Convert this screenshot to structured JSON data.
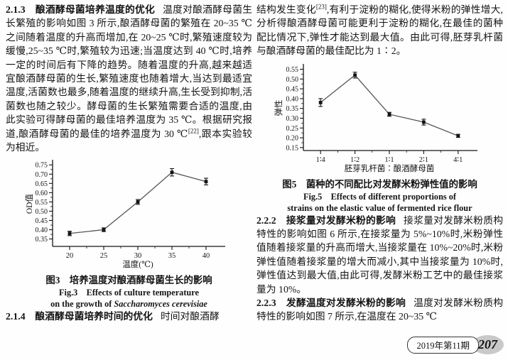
{
  "left_column": {
    "section_213": {
      "heading": "2.1.3　酿酒酵母菌培养温度的优化",
      "body_before_ref": "温度对酿酒酵母菌生长繁殖的影响如图 3 所示,酿酒酵母菌的繁殖在 20~35 ℃之间随着温度的升高而增加,在 20~25 ℃时,繁殖速度较为缓慢,25~35 ℃时,繁殖较为迅速;当温度达到 40 ℃时,培养一定的时间后有下降的趋势。随着温度的升高,越来越适宜酿酒酵母菌的生长,繁殖速度也随着增大,当达到最适宜温度,活菌数也最多,随着温度的继续升高,生长受到抑制,活菌数也随之较少。酵母菌的生长繁殖需要合适的温度,由此实验可得酵母菌的最佳培养温度为 35 ℃。根据研究报道,酿酒酵母菌的最佳的培养温度为 30 ℃",
      "citation": "[22]",
      "body_after_ref": ",跟本实验较为相近。"
    },
    "figure3": {
      "caption_cn": "图3　培养温度对酿酒酵母菌生长的影响",
      "caption_en_line1": "Fig.3　Effects of culture temperature",
      "caption_en_line2_prefix": "on the growth of ",
      "caption_en_line2_species": "Saccharomyces cerevisiae"
    },
    "section_214": {
      "heading": "2.1.4　酿酒酵母菌培养时间的优化",
      "body": "时间对酿酒酵"
    }
  },
  "right_column": {
    "continuation": {
      "body_before_ref": "结构发生变化",
      "citation": "[23]",
      "body_after_ref": ",有利于淀粉的糊化,使得米粉的弹性增大,分析得酿酒酵母菌可能更利于淀粉的糊化,在最佳的菌种配比情况下,弹性才能达到最大值。由此可得,胚芽乳杆菌与酿酒酵母菌的最佳配比为 1∶2。"
    },
    "figure5": {
      "caption_cn": "图5　菌种的不同配比对发酵米粉弹性值的影响",
      "caption_en_line1": "Fig.5　Effects of different proportions of",
      "caption_en_line2": "strains on the elastic value of fermented rice flour"
    },
    "section_222": {
      "heading": "2.2.2　接浆量对发酵米粉的影响",
      "body": "接浆量对发酵米粉质构特性的影响如图 6 所示,在接浆量为 5%~10%时,米粉弹性值随着接浆量的升高而增大,当接浆量在 10%~20%时,米粉弹性值随着接浆量的增大而减小,其中当接浆量为 10%时,弹性值达到最大值,由此可得,发酵米粉工艺中的最佳接浆量为 10%。"
    },
    "section_223": {
      "heading": "2.2.3　发酵温度对发酵米粉的影响",
      "body": "温度对发酵米粉质构特性的影响如图 7 所示,在温度在 20~35 ℃"
    }
  },
  "footer": {
    "issue": "2019年第11期",
    "page_number": "207"
  },
  "chart_data": [
    {
      "id": "figure3",
      "type": "line",
      "categories": [
        "20",
        "25",
        "30",
        "35",
        "40"
      ],
      "values": [
        0.38,
        0.4,
        0.55,
        0.71,
        0.66
      ],
      "error": [
        0.012,
        0.01,
        0.013,
        0.02,
        0.018
      ],
      "title": "",
      "xlabel": "温度(℃)",
      "ylabel": "OD值",
      "ylim": [
        0.31,
        0.77
      ],
      "yticks": [
        0.35,
        0.4,
        0.45,
        0.5,
        0.55,
        0.6,
        0.65,
        0.7,
        0.75
      ],
      "grid": false,
      "legend_position": "none",
      "marker": "filled-square",
      "line_color": "#555555"
    },
    {
      "id": "figure5",
      "type": "line",
      "categories": [
        "1∶4",
        "1∶2",
        "1∶1",
        "2∶1",
        "4∶1"
      ],
      "values": [
        0.38,
        0.52,
        0.32,
        0.28,
        0.21
      ],
      "error": [
        0.02,
        0.015,
        0.01,
        0.015,
        0.008
      ],
      "title": "",
      "xlabel": "胚芽乳杆菌∶酿酒酵母菌",
      "ylabel": "弹性",
      "ylim": [
        0.135,
        0.57
      ],
      "yticks": [
        0.15,
        0.2,
        0.25,
        0.3,
        0.35,
        0.4,
        0.45,
        0.5,
        0.55
      ],
      "grid": false,
      "legend_position": "none",
      "marker": "filled-square",
      "line_color": "#555555"
    }
  ]
}
